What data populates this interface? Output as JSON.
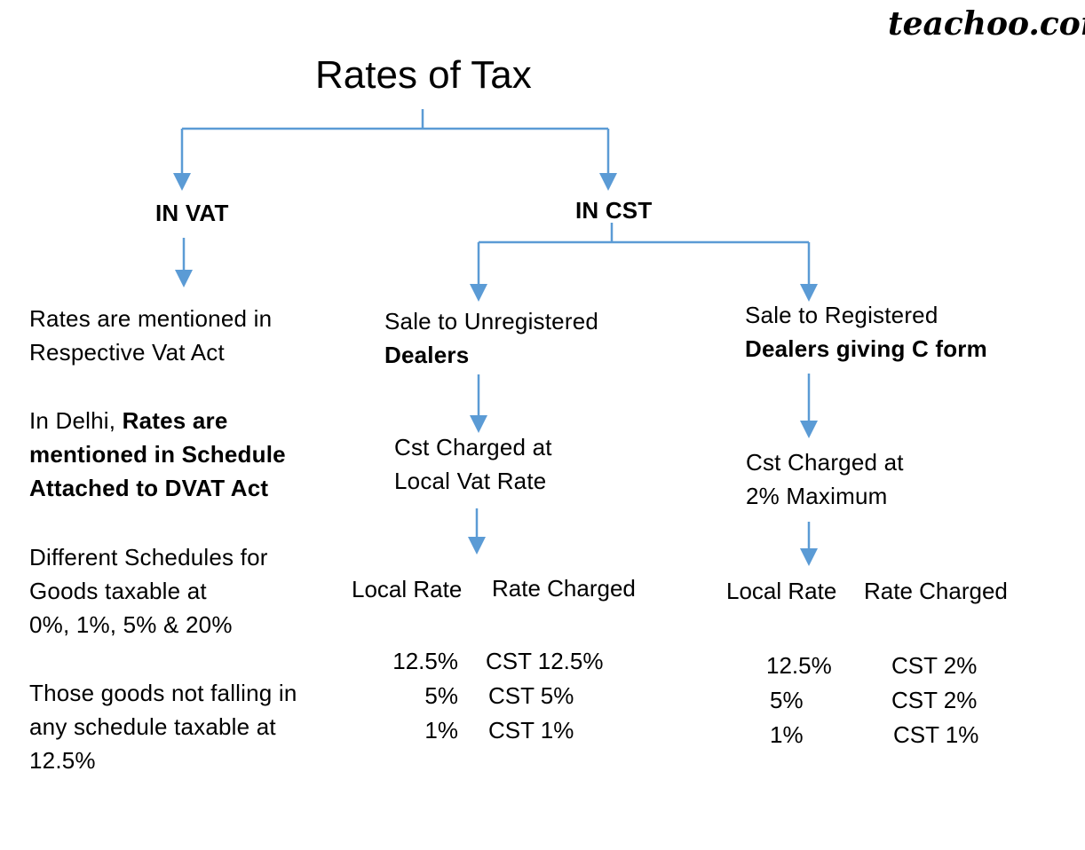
{
  "brand": "teachoo.com",
  "title": "Rates of Tax",
  "vat": {
    "heading": "IN VAT",
    "p1_line1": "Rates are mentioned in",
    "p1_line2": "Respective Vat Act",
    "p2_prefix": "In Delhi, ",
    "p2_bold1": "Rates are",
    "p2_bold2": "mentioned in Schedule",
    "p2_bold3": "Attached to DVAT Act",
    "p3_line1": "Different Schedules for",
    "p3_line2": "Goods taxable at",
    "p3_line3": "0%, 1%, 5% & 20%",
    "p4_line1": "Those goods not falling in",
    "p4_line2": "any schedule taxable at",
    "p4_line3": "12.5%"
  },
  "cst": {
    "heading": "IN CST",
    "unregistered": {
      "line1": "Sale to Unregistered",
      "line2": "Dealers",
      "charge_line1": "Cst Charged at",
      "charge_line2": "Local Vat Rate",
      "col_local": "Local Rate",
      "col_charged": "Rate Charged",
      "rows": [
        {
          "local": "12.5%",
          "charged": "CST 12.5%"
        },
        {
          "local": "5%",
          "charged": "CST 5%"
        },
        {
          "local": "1%",
          "charged": "CST 1%"
        }
      ]
    },
    "registered": {
      "line1": "Sale to Registered",
      "line2": "Dealers giving C form",
      "charge_line1": "Cst Charged at",
      "charge_line2": "2% Maximum",
      "col_local": "Local Rate",
      "col_charged": "Rate Charged",
      "rows": [
        {
          "local": "12.5%",
          "charged": "CST 2%"
        },
        {
          "local": "5%",
          "charged": "CST 2%"
        },
        {
          "local": "1%",
          "charged": "CST 1%"
        }
      ]
    }
  },
  "line_color": "#5b9bd5"
}
